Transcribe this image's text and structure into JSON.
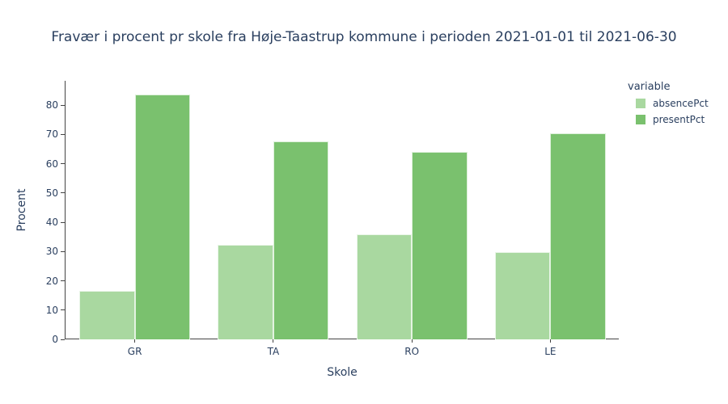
{
  "chart_data": {
    "type": "bar",
    "bar_mode": "group",
    "title": "Fravær i procent pr skole fra Høje-Taastrup kommune i perioden 2021-01-01 til 2021-06-30",
    "categories": [
      "GR",
      "TA",
      "RO",
      "LE"
    ],
    "series": [
      {
        "name": "absencePct",
        "color": "#a9d8a0",
        "values": [
          16.5,
          32.4,
          36.0,
          29.7
        ]
      },
      {
        "name": "presentPct",
        "color": "#7ac16e",
        "values": [
          83.5,
          67.6,
          64.0,
          70.3
        ]
      }
    ],
    "xlabel": "Skole",
    "ylabel": "Procent",
    "ylim": [
      0,
      88.3
    ],
    "yticks": [
      0,
      10,
      20,
      30,
      40,
      50,
      60,
      70,
      80
    ],
    "grid": false,
    "legend": {
      "title": "variable",
      "position": "top-right"
    }
  },
  "colors": {
    "text": "#2a3f5f",
    "axis_line": "#444444",
    "background": "#ffffff"
  }
}
